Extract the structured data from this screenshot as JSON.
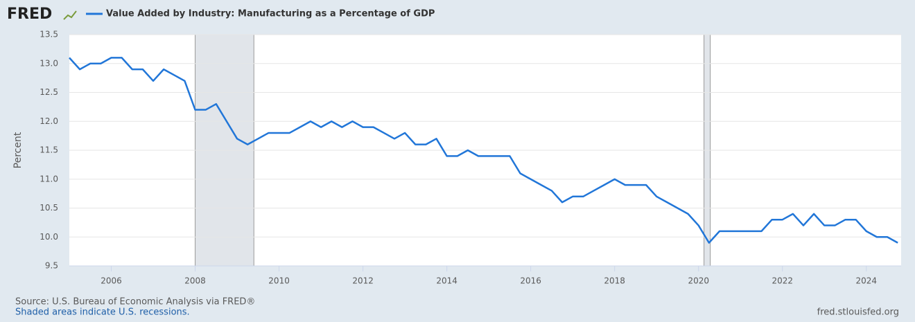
{
  "chart_data": {
    "type": "line",
    "logo": "FRED",
    "y_label": "Percent",
    "source": "Source: U.S. Bureau of Economic Analysis via FRED®",
    "note": "Shaded areas indicate U.S. recessions.",
    "url": "fred.stlouisfed.org",
    "x": [
      2005,
      2005.25,
      2005.5,
      2005.75,
      2006,
      2006.25,
      2006.5,
      2006.75,
      2007,
      2007.25,
      2007.5,
      2007.75,
      2008,
      2008.25,
      2008.5,
      2008.75,
      2009,
      2009.25,
      2009.5,
      2009.75,
      2010,
      2010.25,
      2010.5,
      2010.75,
      2011,
      2011.25,
      2011.5,
      2011.75,
      2012,
      2012.25,
      2012.5,
      2012.75,
      2013,
      2013.25,
      2013.5,
      2013.75,
      2014,
      2014.25,
      2014.5,
      2014.75,
      2015,
      2015.25,
      2015.5,
      2015.75,
      2016,
      2016.25,
      2016.5,
      2016.75,
      2017,
      2017.25,
      2017.5,
      2017.75,
      2018,
      2018.25,
      2018.5,
      2018.75,
      2019,
      2019.25,
      2019.5,
      2019.75,
      2020,
      2020.25,
      2020.5,
      2020.75,
      2021,
      2021.25,
      2021.5,
      2021.75,
      2022,
      2022.25,
      2022.5,
      2022.75,
      2023,
      2023.25,
      2023.5,
      2023.75,
      2024,
      2024.25,
      2024.5,
      2024.75
    ],
    "series": [
      {
        "name": "Value Added by Industry: Manufacturing as a Percentage of GDP",
        "color": "#2176d8",
        "values": [
          13.1,
          12.9,
          13.0,
          13.0,
          13.1,
          13.1,
          12.9,
          12.9,
          12.7,
          12.9,
          12.8,
          12.7,
          12.2,
          12.2,
          12.3,
          12.0,
          11.7,
          11.6,
          11.7,
          11.8,
          11.8,
          11.8,
          11.9,
          12.0,
          11.9,
          12.0,
          11.9,
          12.0,
          11.9,
          11.9,
          11.8,
          11.7,
          11.8,
          11.6,
          11.6,
          11.7,
          11.4,
          11.4,
          11.5,
          11.4,
          11.4,
          11.4,
          11.4,
          11.1,
          11.0,
          10.9,
          10.8,
          10.6,
          10.7,
          10.7,
          10.8,
          10.9,
          11.0,
          10.9,
          10.9,
          10.9,
          10.7,
          10.6,
          10.5,
          10.4,
          10.2,
          9.9,
          10.1,
          10.1,
          10.1,
          10.1,
          10.1,
          10.3,
          10.3,
          10.4,
          10.2,
          10.4,
          10.2,
          10.2,
          10.3,
          10.3,
          10.1,
          10.0,
          10.0,
          9.9
        ]
      }
    ],
    "recessions": [
      [
        2008.0,
        2009.4
      ],
      [
        2020.13,
        2020.28
      ]
    ],
    "xlim": [
      2005,
      2024.83
    ],
    "xticks": [
      2006,
      2008,
      2010,
      2012,
      2014,
      2016,
      2018,
      2020,
      2022,
      2024
    ],
    "ylim": [
      9.5,
      13.5
    ],
    "yticks": [
      9.5,
      {
        "value": 10,
        "label": "10.0"
      },
      10.5,
      {
        "value": 11,
        "label": "11.0"
      },
      11.5,
      {
        "value": 12,
        "label": "12.0"
      },
      12.5,
      {
        "value": 13,
        "label": "13.0"
      },
      13.5
    ],
    "grid": true
  }
}
